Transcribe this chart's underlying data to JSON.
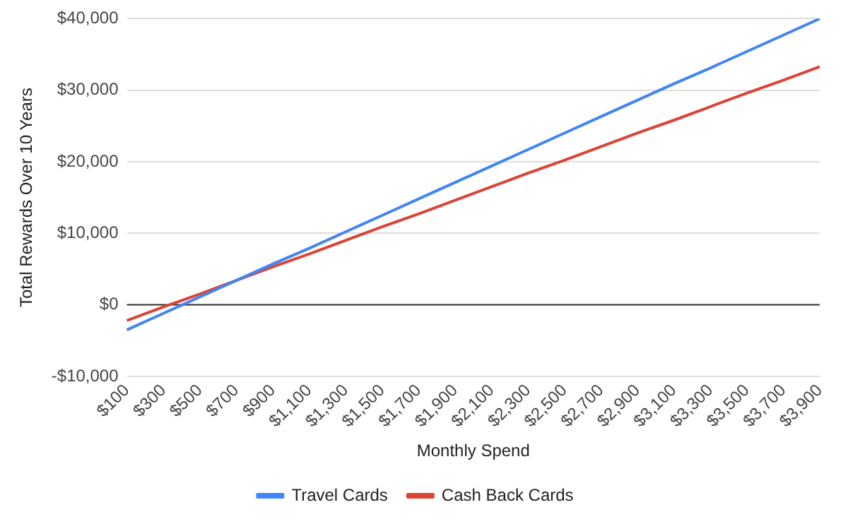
{
  "chart_data": {
    "type": "line",
    "xlabel": "Monthly Spend",
    "ylabel": "Total Rewards Over 10 Years",
    "categories": [
      "$100",
      "$300",
      "$500",
      "$700",
      "$900",
      "$1,100",
      "$1,300",
      "$1,500",
      "$1,700",
      "$1,900",
      "$2,100",
      "$2,300",
      "$2,500",
      "$2,700",
      "$2,900",
      "$3,100",
      "$3,300",
      "$3,500",
      "$3,700",
      "$3,900"
    ],
    "series": [
      {
        "name": "Travel Cards",
        "color": "#4285f4",
        "values": [
          -3500,
          -1200,
          1100,
          3400,
          5700,
          7900,
          10200,
          12500,
          14800,
          17100,
          19400,
          21700,
          24000,
          26300,
          28600,
          30900,
          33100,
          35400,
          37700,
          40000
        ]
      },
      {
        "name": "Cash Back Cards",
        "color": "#db4437",
        "values": [
          -2200,
          -300,
          1500,
          3400,
          5300,
          7100,
          9000,
          10900,
          12700,
          14600,
          16500,
          18400,
          20200,
          22100,
          24000,
          25800,
          27700,
          29600,
          31400,
          33300
        ]
      }
    ],
    "ylim": [
      -10000,
      40000
    ],
    "yticks": [
      {
        "value": -10000,
        "label": "-$10,000"
      },
      {
        "value": 0,
        "label": "$0"
      },
      {
        "value": 10000,
        "label": "$10,000"
      },
      {
        "value": 20000,
        "label": "$20,000"
      },
      {
        "value": 30000,
        "label": "$30,000"
      },
      {
        "value": 40000,
        "label": "$40,000"
      }
    ],
    "grid": "y",
    "legend": "bottom",
    "marker": "none",
    "line_style": "solid"
  }
}
